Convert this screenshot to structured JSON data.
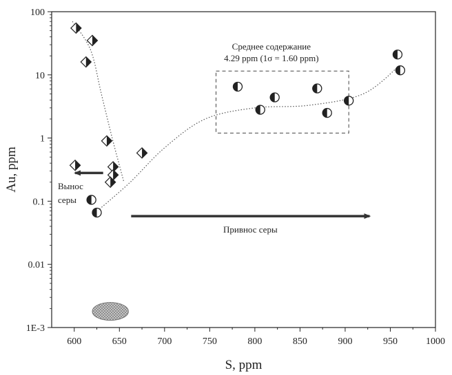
{
  "chart_data": {
    "type": "scatter",
    "xlabel": "S, ppm",
    "ylabel": "Au, ppm",
    "xlim": [
      575,
      1000
    ],
    "ylim": [
      0.001,
      100
    ],
    "yscale": "log",
    "x_ticks": [
      600,
      650,
      700,
      750,
      800,
      850,
      900,
      950,
      1000
    ],
    "y_ticks": [
      {
        "value": 100,
        "label": "100"
      },
      {
        "value": 10,
        "label": "10"
      },
      {
        "value": 1,
        "label": "1"
      },
      {
        "value": 0.1,
        "label": "0.1"
      },
      {
        "value": 0.01,
        "label": "0.01"
      },
      {
        "value": 0.001,
        "label": "1E-3"
      }
    ],
    "series": [
      {
        "marker": "half-filled-diamond",
        "color": "#222222",
        "points": [
          {
            "x": 602,
            "y": 55
          },
          {
            "x": 620,
            "y": 35
          },
          {
            "x": 613,
            "y": 16
          },
          {
            "x": 636,
            "y": 0.9
          },
          {
            "x": 601,
            "y": 0.37
          },
          {
            "x": 643,
            "y": 0.35
          },
          {
            "x": 643,
            "y": 0.26
          },
          {
            "x": 640,
            "y": 0.2
          },
          {
            "x": 675,
            "y": 0.58
          }
        ]
      },
      {
        "marker": "half-filled-circle",
        "color": "#222222",
        "points": [
          {
            "x": 958,
            "y": 21
          },
          {
            "x": 961,
            "y": 11.8
          },
          {
            "x": 781,
            "y": 6.5
          },
          {
            "x": 869,
            "y": 6.1
          },
          {
            "x": 822,
            "y": 4.4
          },
          {
            "x": 904,
            "y": 3.9
          },
          {
            "x": 806,
            "y": 2.8
          },
          {
            "x": 880,
            "y": 2.5
          },
          {
            "x": 619,
            "y": 0.105
          },
          {
            "x": 625,
            "y": 0.066
          }
        ]
      }
    ],
    "trend_lines": [
      {
        "style": "dotted",
        "points": [
          {
            "x": 598,
            "y": 70
          },
          {
            "x": 618,
            "y": 25
          },
          {
            "x": 630,
            "y": 5
          },
          {
            "x": 642,
            "y": 1
          },
          {
            "x": 655,
            "y": 0.2
          }
        ]
      },
      {
        "style": "dotted",
        "points": [
          {
            "x": 628,
            "y": 0.075
          },
          {
            "x": 662,
            "y": 0.2
          },
          {
            "x": 700,
            "y": 0.7
          },
          {
            "x": 745,
            "y": 2
          },
          {
            "x": 800,
            "y": 3
          },
          {
            "x": 860,
            "y": 3.3
          },
          {
            "x": 920,
            "y": 5
          },
          {
            "x": 960,
            "y": 14
          }
        ]
      }
    ],
    "annotations": {
      "box_label": [
        "Среднее содержание",
        "4.29 ppm (1σ = 1.60 ppm)"
      ],
      "box_range": {
        "x": [
          757,
          904
        ],
        "y": [
          1.2,
          11.5
        ]
      },
      "left_arrow_label": [
        "Вынос",
        "серы"
      ],
      "left_arrow": {
        "from": {
          "x": 632,
          "y": 0.28
        },
        "to": {
          "x": 601,
          "y": 0.28
        }
      },
      "right_arrow_label": "Привнос серы",
      "right_arrow": {
        "from": {
          "x": 663,
          "y": 0.058
        },
        "to": {
          "x": 927,
          "y": 0.058
        }
      },
      "ellipse": {
        "cx": 640,
        "cy": 0.0018,
        "rx": 20,
        "ry_top": 0.0025,
        "ry_bottom": 0.0013
      }
    }
  }
}
